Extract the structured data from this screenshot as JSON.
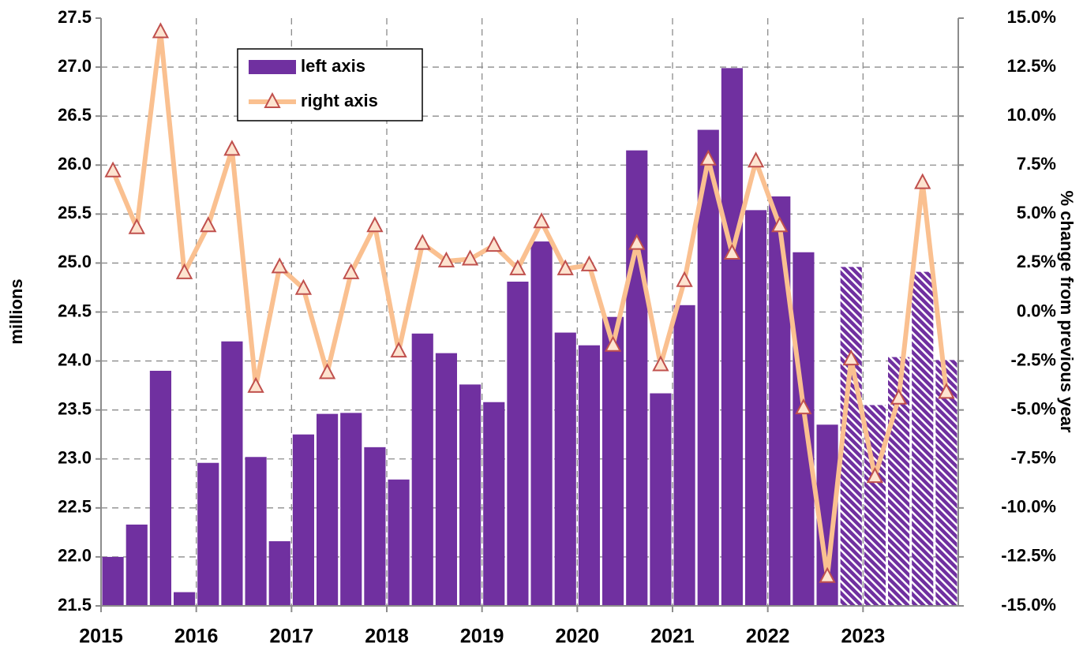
{
  "chart_data": {
    "type": "combo",
    "ylabel": "millions",
    "y2label": "% change from previous year",
    "categories": [
      null,
      null,
      null,
      null,
      null,
      null,
      null,
      null,
      null,
      null,
      null,
      null,
      null,
      null,
      null,
      null,
      null,
      null,
      null,
      null,
      null,
      null,
      null,
      null,
      null,
      null,
      null,
      null,
      null,
      null,
      null,
      null,
      null,
      null,
      null,
      null
    ],
    "xlim": [
      2015,
      2024
    ],
    "xticks": [
      2015,
      2016,
      2017,
      2018,
      2019,
      2020,
      2021,
      2022,
      2023
    ],
    "ylim": [
      21.5,
      27.5
    ],
    "yticks": [
      21.5,
      {
        "value": 22,
        "label": "22.0"
      },
      22.5,
      {
        "value": 23,
        "label": "23.0"
      },
      23.5,
      {
        "value": 24,
        "label": "24.0"
      },
      24.5,
      {
        "value": 25,
        "label": "25.0"
      },
      25.5,
      {
        "value": 26,
        "label": "26.0"
      },
      26.5,
      {
        "value": 27,
        "label": "27.0"
      },
      27.5
    ],
    "y2lim": [
      -15,
      15
    ],
    "y2ticks": [
      {
        "value": -15,
        "label": "-15.0%"
      },
      {
        "value": -12.5,
        "label": "-12.5%"
      },
      {
        "value": -10,
        "label": "-10.0%"
      },
      {
        "value": -7.5,
        "label": "-7.5%"
      },
      {
        "value": -5,
        "label": "-5.0%"
      },
      {
        "value": -2.5,
        "label": "-2.5%"
      },
      {
        "value": 0,
        "label": "0.0%"
      },
      {
        "value": 2.5,
        "label": "2.5%"
      },
      {
        "value": 5,
        "label": "5.0%"
      },
      {
        "value": 7.5,
        "label": "7.5%"
      },
      {
        "value": 10,
        "label": "10.0%"
      },
      {
        "value": 12.5,
        "label": "12.5%"
      },
      {
        "value": 15,
        "label": "15.0%"
      }
    ],
    "grid": true,
    "legend": "upper left",
    "series": [
      {
        "name": "left axis",
        "type": "bar",
        "color": "#7030a0",
        "values": [
          22.0,
          22.33,
          23.9,
          21.64,
          22.96,
          24.2,
          23.02,
          22.16,
          23.25,
          23.46,
          23.47,
          23.12,
          22.79,
          24.28,
          24.08,
          23.76,
          23.58,
          24.81,
          25.22,
          24.29,
          24.16,
          24.45,
          26.15,
          23.67,
          24.57,
          26.36,
          26.99,
          25.54,
          25.68,
          25.11,
          23.35,
          24.96,
          23.55,
          24.04,
          24.91,
          24.01
        ],
        "hatched": [
          false,
          false,
          false,
          false,
          false,
          false,
          false,
          false,
          false,
          false,
          false,
          false,
          false,
          false,
          false,
          false,
          false,
          false,
          false,
          false,
          false,
          false,
          false,
          false,
          false,
          false,
          false,
          false,
          false,
          false,
          false,
          true,
          true,
          true,
          true,
          true
        ]
      },
      {
        "name": "right axis",
        "type": "line",
        "axis": "y2",
        "color": "#fac090",
        "marker_color": "#c0504d",
        "marker_fill": "#fde4d0",
        "values": [
          7.2,
          4.3,
          14.3,
          2.0,
          4.4,
          8.3,
          -3.8,
          2.3,
          1.2,
          -3.1,
          2.0,
          4.4,
          -2.0,
          3.5,
          2.6,
          2.7,
          3.4,
          2.2,
          4.6,
          2.2,
          2.4,
          -1.7,
          3.5,
          -2.7,
          1.6,
          7.8,
          3.0,
          7.7,
          4.4,
          -4.9,
          -13.5,
          -2.4,
          -8.4,
          -4.4,
          6.6,
          -4.1
        ]
      }
    ]
  }
}
